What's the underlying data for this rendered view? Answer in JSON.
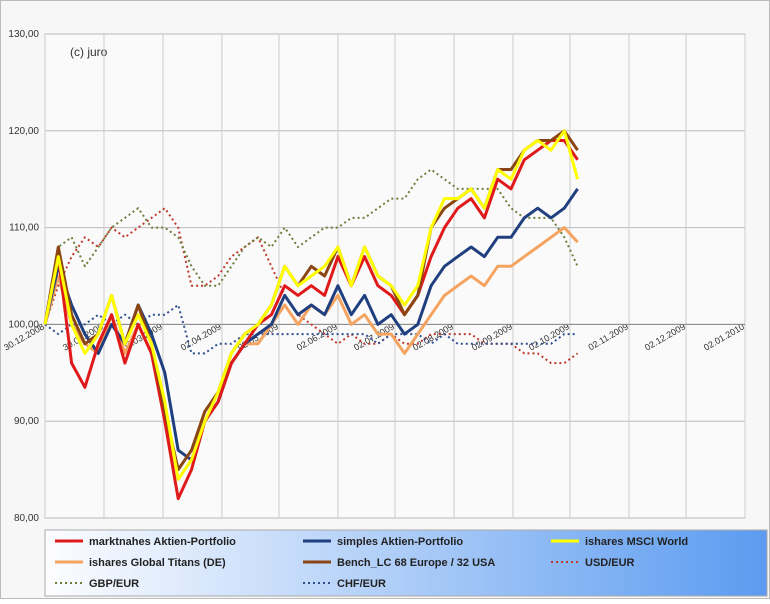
{
  "chart_data": {
    "type": "line",
    "annotation": "(c) juro",
    "x": [
      "30.12.2008",
      "06.01.2009",
      "13.01.2009",
      "20.01.2009",
      "27.01.2009",
      "03.02.2009",
      "10.02.2009",
      "17.02.2009",
      "24.02.2009",
      "03.03.2009",
      "10.03.2009",
      "17.03.2009",
      "24.03.2009",
      "31.03.2009",
      "07.04.2009",
      "14.04.2009",
      "21.04.2009",
      "28.04.2009",
      "05.05.2009",
      "12.05.2009",
      "19.05.2009",
      "26.05.2009",
      "02.06.2009",
      "09.06.2009",
      "16.06.2009",
      "23.06.2009",
      "30.06.2009",
      "07.07.2009",
      "14.07.2009",
      "21.07.2009",
      "28.07.2009",
      "04.08.2009",
      "11.08.2009",
      "18.08.2009",
      "25.08.2009",
      "01.09.2009",
      "08.09.2009",
      "15.09.2009",
      "22.09.2009",
      "29.09.2009",
      "06.10.2009"
    ],
    "xlim": [
      "30.12.2008",
      "02.01.2010"
    ],
    "xticks": [
      "30.12.2008",
      "30.01.2009",
      "02.03.2009",
      "02.04.2009",
      "02.05.2009",
      "02.06.2009",
      "02.07.2009",
      "02.08.2009",
      "02.09.2009",
      "02.10.2009",
      "02.11.2009",
      "02.12.2009",
      "02.01.2010"
    ],
    "ylim": [
      80,
      130
    ],
    "yticks": [
      {
        "value": 80,
        "label": "80,00"
      },
      {
        "value": 90,
        "label": "90,00"
      },
      {
        "value": 100,
        "label": "100,00"
      },
      {
        "value": 110,
        "label": "110,00"
      },
      {
        "value": 120,
        "label": "120,00"
      },
      {
        "value": 130,
        "label": "130,00"
      }
    ],
    "x_axis_crossing": 100,
    "grid": true,
    "legend": "bottom",
    "series": [
      {
        "name": "marktnahes Aktien-Portfolio",
        "color": "#e01a1a",
        "style": "solid",
        "values": [
          100,
          107,
          96,
          93.5,
          98,
          101,
          96,
          100,
          97,
          90,
          82,
          85,
          90,
          92,
          96,
          98,
          100,
          101,
          104,
          103,
          104,
          103,
          107,
          104,
          107,
          104,
          103,
          101,
          103,
          107,
          110,
          112,
          113,
          111,
          115,
          114,
          117,
          118,
          119,
          119,
          117
        ]
      },
      {
        "name": "simples Aktien-Portfolio",
        "color": "#1f3f7f",
        "style": "solid",
        "values": [
          100,
          106,
          102,
          99,
          97,
          100,
          98,
          102,
          99,
          95,
          87,
          86,
          90,
          92,
          96,
          98,
          99,
          100,
          103,
          101,
          102,
          101,
          104,
          101,
          103,
          100,
          101,
          99,
          100,
          104,
          106,
          107,
          108,
          107,
          109,
          109,
          111,
          112,
          111,
          112,
          114
        ]
      },
      {
        "name": "ishares MSCI World",
        "color": "#ffff00",
        "style": "solid",
        "values": [
          100,
          107,
          100,
          97,
          99,
          103,
          98,
          101,
          98,
          92,
          84,
          86,
          90,
          93,
          97,
          99,
          100,
          102,
          106,
          104,
          105,
          106,
          108,
          104,
          108,
          105,
          104,
          102,
          104,
          110,
          113,
          113,
          114,
          112,
          116,
          115,
          118,
          119,
          118,
          120,
          115
        ]
      },
      {
        "name": "ishares Global Titans (DE)",
        "color": "#f4a460",
        "style": "solid",
        "values": [
          100,
          105,
          100,
          98,
          97,
          101,
          97,
          100,
          97,
          91,
          84,
          86,
          90,
          92,
          96,
          98,
          98,
          100,
          102,
          100,
          102,
          101,
          103,
          100,
          101,
          99,
          99,
          97,
          99,
          101,
          103,
          104,
          105,
          104,
          106,
          106,
          107,
          108,
          109,
          110,
          108.5
        ]
      },
      {
        "name": "Bench_LC  68 Europe / 32 USA",
        "color": "#8b4513",
        "style": "solid",
        "values": [
          100,
          108,
          101,
          98,
          99,
          103,
          98,
          102,
          98,
          91,
          85,
          87,
          91,
          93,
          97,
          99,
          100,
          102,
          106,
          104,
          106,
          105,
          108,
          104,
          108,
          105,
          104,
          101,
          103,
          110,
          112,
          113,
          114,
          112,
          116,
          116,
          118,
          119,
          119,
          120,
          118
        ]
      },
      {
        "name": "USD/EUR",
        "color": "#c0392b",
        "style": "dotted",
        "values": [
          100,
          104,
          107,
          109,
          108,
          110,
          109,
          110,
          111,
          112,
          110,
          104,
          104,
          105,
          107,
          108,
          109,
          106,
          103,
          101,
          100,
          99,
          98,
          99,
          98,
          98,
          99,
          98,
          98,
          99,
          99,
          99,
          99,
          98,
          98,
          98,
          97,
          97,
          96,
          96,
          97
        ]
      },
      {
        "name": "GBP/EUR",
        "color": "#6b7f3a",
        "style": "dotted",
        "values": [
          100,
          108,
          109,
          106,
          108,
          110,
          111,
          112,
          110,
          110,
          109,
          106,
          104,
          104,
          106,
          108,
          109,
          108,
          110,
          108,
          109,
          110,
          110,
          111,
          111,
          112,
          113,
          113,
          115,
          116,
          115,
          114,
          114,
          114,
          114,
          112,
          111,
          111,
          111,
          109,
          106
        ]
      },
      {
        "name": "CHF/EUR",
        "color": "#2f4f8f",
        "style": "dotted",
        "values": [
          100,
          99,
          100,
          100,
          101,
          100,
          101,
          100,
          101,
          101,
          102,
          97,
          97,
          98,
          98,
          99,
          99,
          99,
          99,
          99,
          99,
          99,
          99,
          99,
          99,
          98,
          99,
          99,
          99,
          98,
          99,
          98,
          98,
          98,
          98,
          98,
          98,
          98,
          98,
          99,
          99
        ]
      }
    ]
  }
}
